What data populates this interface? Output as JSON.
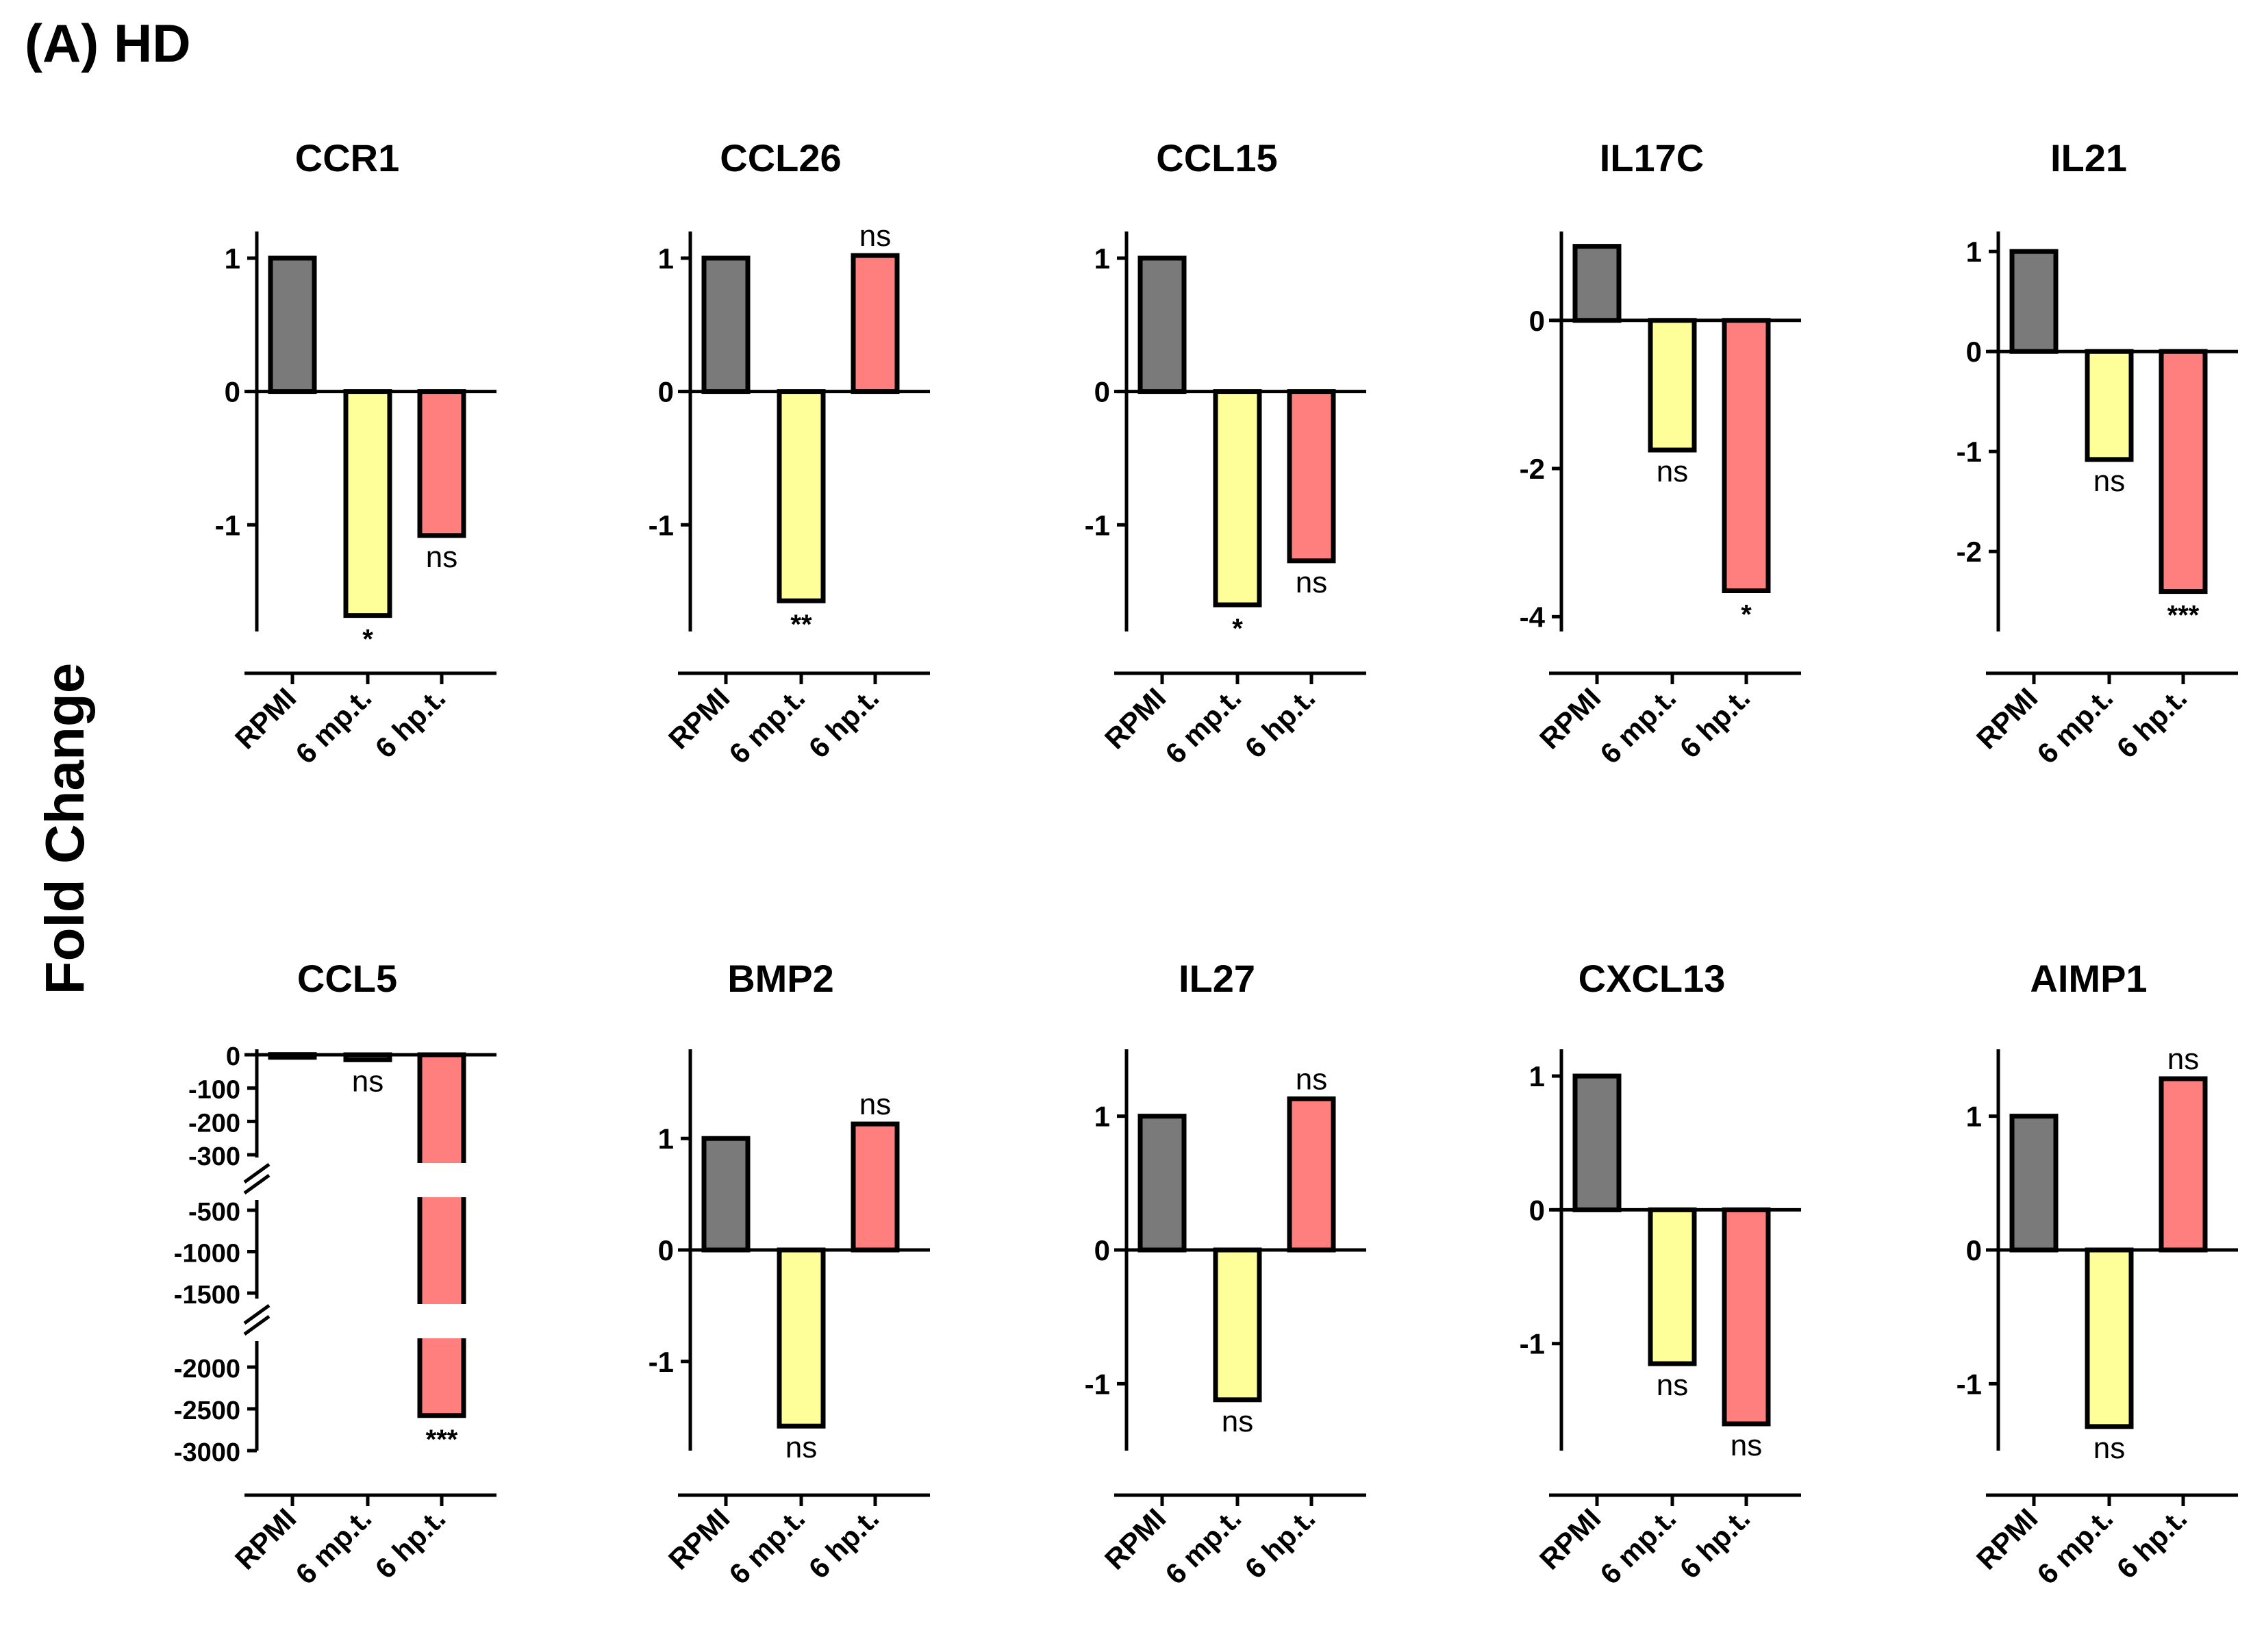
{
  "figure": {
    "panel_label": "(A) HD",
    "y_axis_title": "Fold Change"
  },
  "colors": {
    "RPMI": "#7a7a7a",
    "6 mp.t.": "#ffff99",
    "6 hp.t.": "#ff7f7f",
    "axis": "#000000"
  },
  "chart_data": [
    {
      "type": "bar",
      "title": "CCR1",
      "categories": [
        "RPMI",
        "6 mp.t.",
        "6 hp.t."
      ],
      "values": [
        1,
        -1.68,
        -1.08
      ],
      "significance": [
        "",
        "*",
        "ns"
      ],
      "ylim": [
        -1.8,
        1.2
      ],
      "ticks": [
        1,
        0,
        -1
      ],
      "tick_labels": [
        "1",
        "0",
        "-1"
      ]
    },
    {
      "type": "bar",
      "title": "CCL26",
      "categories": [
        "RPMI",
        "6 mp.t.",
        "6 hp.t."
      ],
      "values": [
        1,
        -1.57,
        1.02
      ],
      "significance": [
        "",
        "**",
        "ns"
      ],
      "ylim": [
        -1.8,
        1.2
      ],
      "ticks": [
        1,
        0,
        -1
      ],
      "tick_labels": [
        "1",
        "0",
        "-1"
      ]
    },
    {
      "type": "bar",
      "title": "CCL15",
      "categories": [
        "RPMI",
        "6 mp.t.",
        "6 hp.t."
      ],
      "values": [
        1,
        -1.6,
        -1.27
      ],
      "significance": [
        "",
        "*",
        "ns"
      ],
      "ylim": [
        -1.8,
        1.2
      ],
      "ticks": [
        1,
        0,
        -1
      ],
      "tick_labels": [
        "1",
        "0",
        "-1"
      ]
    },
    {
      "type": "bar",
      "title": "IL17C",
      "categories": [
        "RPMI",
        "6 mp.t.",
        "6 hp.t."
      ],
      "values": [
        1,
        -1.75,
        -3.65
      ],
      "significance": [
        "",
        "ns",
        "*"
      ],
      "ylim": [
        -4.2,
        1.2
      ],
      "ticks": [
        0,
        -2,
        -4
      ],
      "tick_labels": [
        "0",
        "-2",
        "-4"
      ]
    },
    {
      "type": "bar",
      "title": "IL21",
      "categories": [
        "RPMI",
        "6 mp.t.",
        "6 hp.t."
      ],
      "values": [
        1,
        -1.08,
        -2.4
      ],
      "significance": [
        "",
        "ns",
        "***"
      ],
      "ylim": [
        -2.8,
        1.2
      ],
      "ticks": [
        1,
        0,
        -1,
        -2
      ],
      "tick_labels": [
        "1",
        "0",
        "-1",
        "-2"
      ]
    },
    {
      "type": "bar",
      "title": "CCL5",
      "categories": [
        "RPMI",
        "6 mp.t.",
        "6 hp.t."
      ],
      "values": [
        1,
        -15,
        -2580
      ],
      "significance": [
        "",
        "ns",
        "***"
      ],
      "axis_break": true,
      "ticks": [
        0,
        -100,
        -200,
        -300,
        -500,
        -1000,
        -1500,
        -2000,
        -2500,
        -3000
      ],
      "tick_labels": [
        "0",
        "-100",
        "-200",
        "-300",
        "-500",
        "-1000",
        "-1500",
        "-2000",
        "-2500",
        "-3000"
      ]
    },
    {
      "type": "bar",
      "title": "BMP2",
      "categories": [
        "RPMI",
        "6 mp.t.",
        "6 hp.t."
      ],
      "values": [
        1,
        -1.58,
        1.13
      ],
      "significance": [
        "",
        "ns",
        "ns"
      ],
      "ylim": [
        -1.8,
        1.8
      ],
      "ticks": [
        1,
        0,
        -1
      ],
      "tick_labels": [
        "1",
        "0",
        "-1"
      ]
    },
    {
      "type": "bar",
      "title": "IL27",
      "categories": [
        "RPMI",
        "6 mp.t.",
        "6 hp.t."
      ],
      "values": [
        1,
        -1.12,
        1.13
      ],
      "significance": [
        "",
        "ns",
        "ns"
      ],
      "ylim": [
        -1.5,
        1.5
      ],
      "ticks": [
        1,
        0,
        -1
      ],
      "tick_labels": [
        "1",
        "0",
        "-1"
      ]
    },
    {
      "type": "bar",
      "title": "CXCL13",
      "categories": [
        "RPMI",
        "6 mp.t.",
        "6 hp.t."
      ],
      "values": [
        1,
        -1.15,
        -1.6
      ],
      "significance": [
        "",
        "ns",
        "ns"
      ],
      "ylim": [
        -1.8,
        1.2
      ],
      "ticks": [
        1,
        0,
        -1
      ],
      "tick_labels": [
        "1",
        "0",
        "-1"
      ]
    },
    {
      "type": "bar",
      "title": "AIMP1",
      "categories": [
        "RPMI",
        "6 mp.t.",
        "6 hp.t."
      ],
      "values": [
        1,
        -1.32,
        1.28
      ],
      "significance": [
        "",
        "ns",
        "ns"
      ],
      "ylim": [
        -1.5,
        1.5
      ],
      "ticks": [
        1,
        0,
        -1
      ],
      "tick_labels": [
        "1",
        "0",
        "-1"
      ]
    }
  ]
}
